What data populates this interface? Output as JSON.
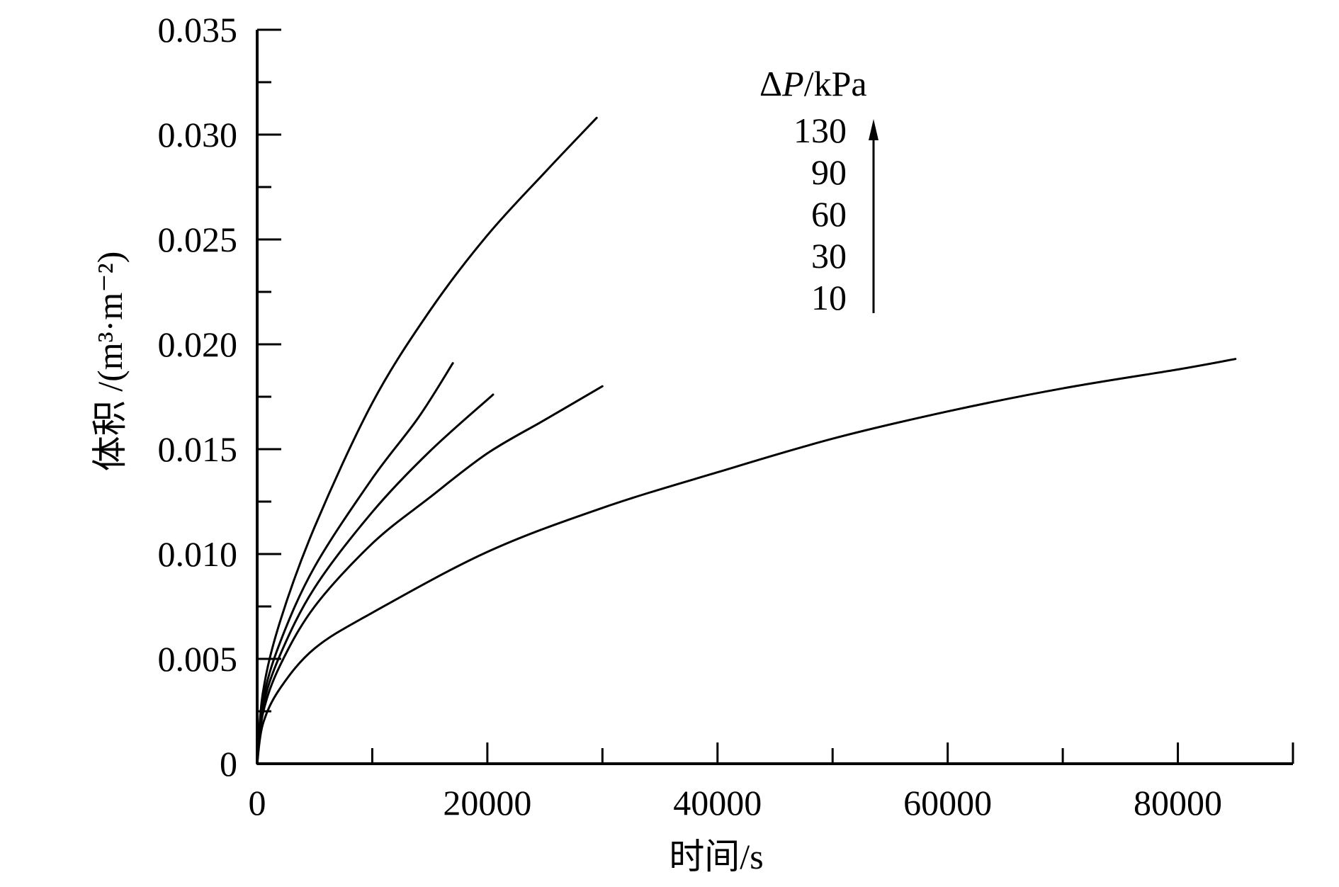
{
  "chart_data": {
    "type": "line",
    "title": "",
    "xlabel": "时间/s",
    "ylabel": "体积 /(m³·m⁻²)",
    "xlim": [
      0,
      90000
    ],
    "ylim": [
      0,
      0.035
    ],
    "x_ticks": [
      0,
      20000,
      40000,
      60000,
      80000
    ],
    "x_tick_labels": [
      "0",
      "20000",
      "40000",
      "60000",
      "80000"
    ],
    "x_minor_step": 10000,
    "y_ticks": [
      0,
      0.005,
      0.01,
      0.015,
      0.02,
      0.025,
      0.03,
      0.035
    ],
    "y_tick_labels": [
      "0",
      "0.005",
      "0.010",
      "0.015",
      "0.020",
      "0.025",
      "0.030",
      "0.035"
    ],
    "y_minor_step": 0.0025,
    "grid": false,
    "legend": {
      "title_prefix": "Δ",
      "title_var": "P",
      "title_unit": "/kPa",
      "entries": [
        "130",
        "90",
        "60",
        "30",
        "10"
      ],
      "arrow": "up",
      "placement": "top-center"
    },
    "series": [
      {
        "pressure": "10",
        "x": [
          0,
          500,
          2000,
          5000,
          10000,
          20000,
          30000,
          40000,
          50000,
          60000,
          70000,
          80000,
          85000
        ],
        "y": [
          0,
          0.0019,
          0.0036,
          0.0055,
          0.0072,
          0.0101,
          0.0122,
          0.0139,
          0.0155,
          0.0168,
          0.0179,
          0.0188,
          0.0193
        ]
      },
      {
        "pressure": "30",
        "x": [
          0,
          500,
          2000,
          5000,
          10000,
          15000,
          20000,
          25000,
          30000
        ],
        "y": [
          0,
          0.0024,
          0.0047,
          0.0075,
          0.0105,
          0.0127,
          0.0148,
          0.0164,
          0.018
        ]
      },
      {
        "pressure": "60",
        "x": [
          0,
          500,
          2000,
          5000,
          10000,
          15000,
          20500
        ],
        "y": [
          0,
          0.0027,
          0.0052,
          0.0084,
          0.012,
          0.0149,
          0.0176
        ]
      },
      {
        "pressure": "90",
        "x": [
          0,
          500,
          2000,
          5000,
          10000,
          14000,
          17000
        ],
        "y": [
          0,
          0.003,
          0.0058,
          0.0094,
          0.0136,
          0.0165,
          0.0191
        ]
      },
      {
        "pressure": "130",
        "x": [
          0,
          500,
          2000,
          5000,
          10000,
          15000,
          20000,
          25000,
          29500
        ],
        "y": [
          0,
          0.0034,
          0.0068,
          0.0113,
          0.0172,
          0.0216,
          0.0252,
          0.0282,
          0.0308
        ]
      }
    ]
  }
}
